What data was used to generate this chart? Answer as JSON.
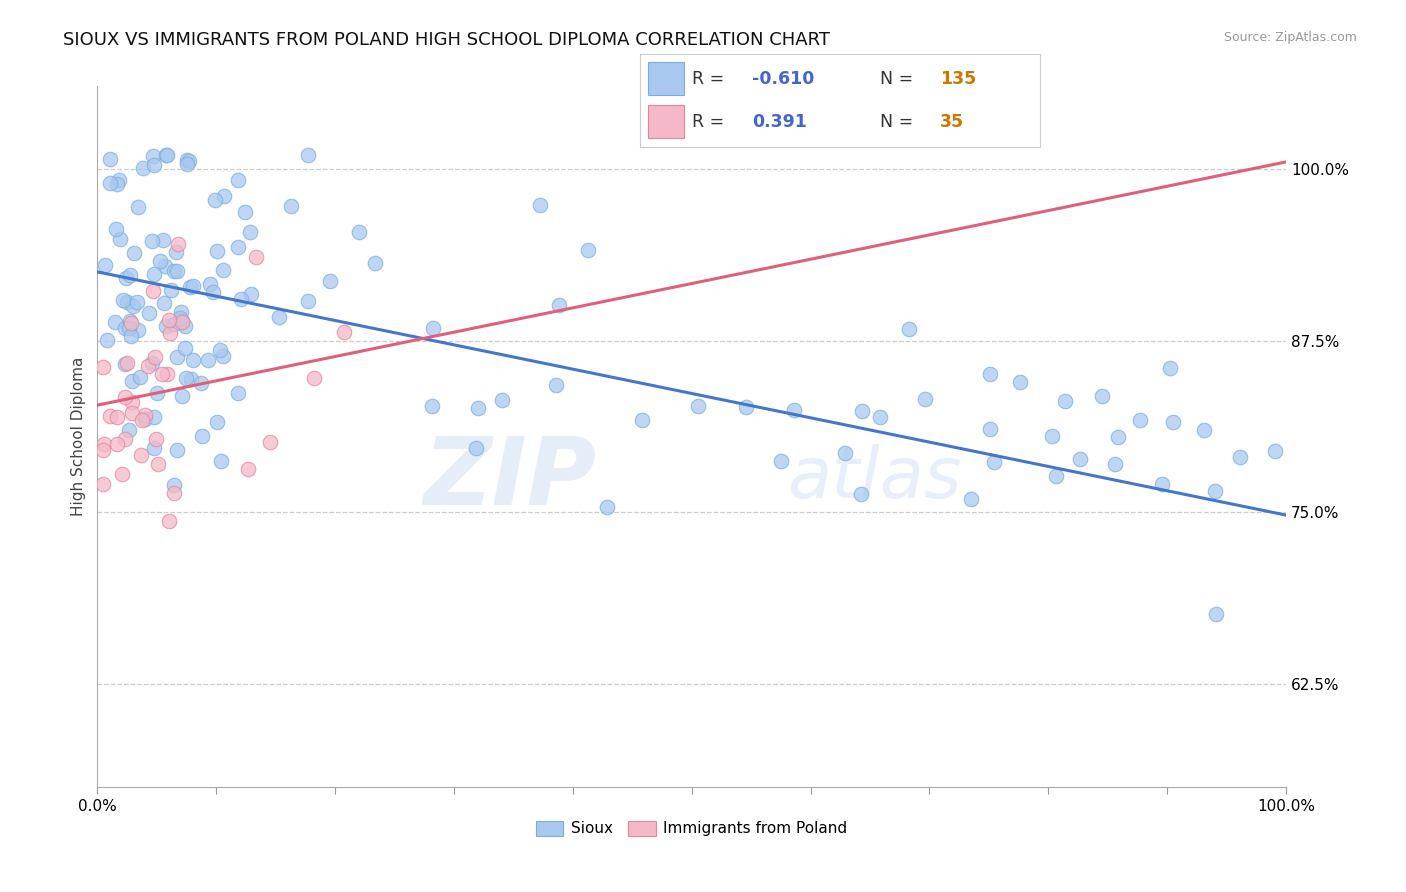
{
  "title": "SIOUX VS IMMIGRANTS FROM POLAND HIGH SCHOOL DIPLOMA CORRELATION CHART",
  "source": "Source: ZipAtlas.com",
  "ylabel": "High School Diploma",
  "sioux_R": -0.61,
  "sioux_N": 135,
  "poland_R": 0.391,
  "poland_N": 35,
  "sioux_color": "#a8c8f0",
  "sioux_edge_color": "#7aaee0",
  "sioux_line_color": "#4477cc",
  "poland_color": "#f5b8c8",
  "poland_edge_color": "#e08898",
  "poland_line_color": "#e0607a",
  "background_color": "#ffffff",
  "watermark_zip": "ZIP",
  "watermark_atlas": "atlas",
  "xlim": [
    0.0,
    1.0
  ],
  "ylim": [
    0.55,
    1.06
  ],
  "yticks": [
    0.625,
    0.75,
    0.875,
    1.0
  ],
  "ytick_labels": [
    "62.5%",
    "75.0%",
    "87.5%",
    "100.0%"
  ],
  "xtick_labels": [
    "0.0%",
    "100.0%"
  ],
  "title_fontsize": 13,
  "axis_fontsize": 11,
  "legend_R_color": "#4466cc",
  "legend_N_color": "#cc7700",
  "sioux_line_x0": 0.0,
  "sioux_line_x1": 1.0,
  "sioux_line_y0": 0.925,
  "sioux_line_y1": 0.748,
  "poland_line_x0": 0.0,
  "poland_line_x1": 1.0,
  "poland_line_y0": 0.828,
  "poland_line_y1": 1.005
}
